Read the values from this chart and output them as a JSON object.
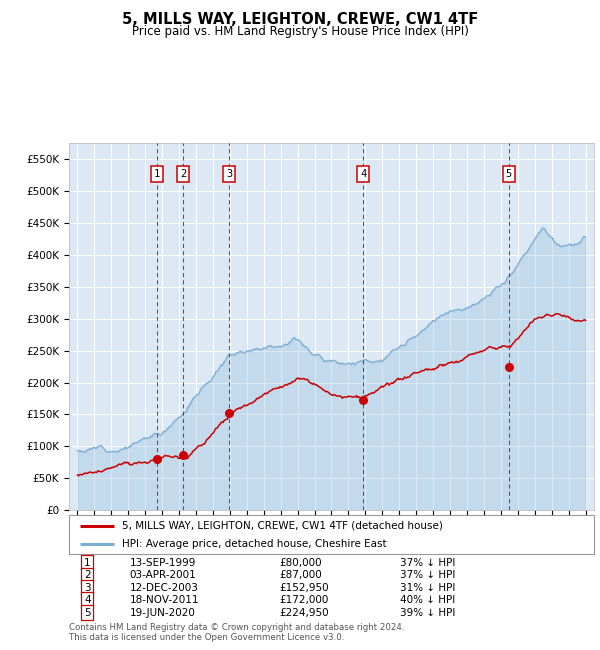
{
  "title": "5, MILLS WAY, LEIGHTON, CREWE, CW1 4TF",
  "subtitle": "Price paid vs. HM Land Registry's House Price Index (HPI)",
  "outer_bg_color": "#ffffff",
  "plot_bg_color": "#dce9f5",
  "y_min": 0,
  "y_max": 575000,
  "y_ticks": [
    0,
    50000,
    100000,
    150000,
    200000,
    250000,
    300000,
    350000,
    400000,
    450000,
    500000,
    550000
  ],
  "y_tick_labels": [
    "£0",
    "£50K",
    "£100K",
    "£150K",
    "£200K",
    "£250K",
    "£300K",
    "£350K",
    "£400K",
    "£450K",
    "£500K",
    "£550K"
  ],
  "x_min": 1994.5,
  "x_max": 2025.5,
  "sale_dates": [
    1999.71,
    2001.25,
    2003.95,
    2011.88,
    2020.46
  ],
  "sale_prices": [
    80000,
    87000,
    152950,
    172000,
    224950
  ],
  "sale_labels": [
    "1",
    "2",
    "3",
    "4",
    "5"
  ],
  "hpi_label": "HPI: Average price, detached house, Cheshire East",
  "property_label": "5, MILLS WAY, LEIGHTON, CREWE, CW1 4TF (detached house)",
  "red_line_color": "#cc0000",
  "blue_line_color": "#7aadd4",
  "grid_color": "#ffffff",
  "table_rows": [
    [
      "1",
      "13-SEP-1999",
      "£80,000",
      "37% ↓ HPI"
    ],
    [
      "2",
      "03-APR-2001",
      "£87,000",
      "37% ↓ HPI"
    ],
    [
      "3",
      "12-DEC-2003",
      "£152,950",
      "31% ↓ HPI"
    ],
    [
      "4",
      "18-NOV-2011",
      "£172,000",
      "40% ↓ HPI"
    ],
    [
      "5",
      "19-JUN-2020",
      "£224,950",
      "39% ↓ HPI"
    ]
  ],
  "footer": "Contains HM Land Registry data © Crown copyright and database right 2024.\nThis data is licensed under the Open Government Licence v3.0."
}
